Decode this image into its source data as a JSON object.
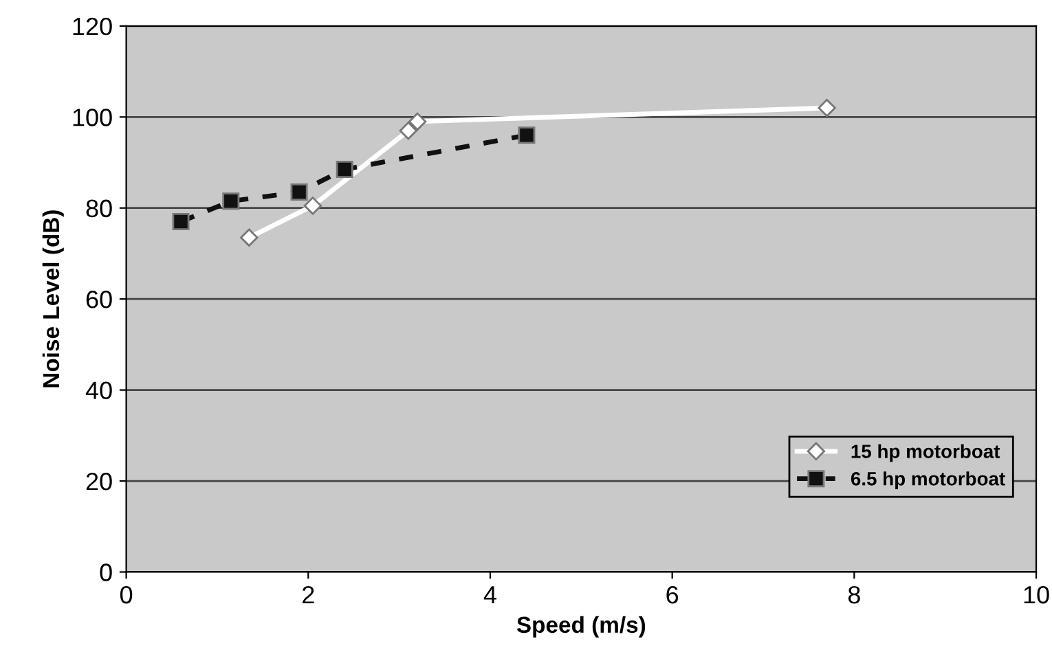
{
  "chart_data": {
    "type": "line",
    "xlabel": "Speed (m/s)",
    "ylabel": "Noise Level (dB)",
    "xlim": [
      0,
      10
    ],
    "xticks": [
      0,
      2,
      4,
      6,
      8,
      10
    ],
    "ylim": [
      0,
      120
    ],
    "yticks": [
      0,
      20,
      40,
      60,
      80,
      100,
      120
    ],
    "grid": "y",
    "legend": "bottom right",
    "series": [
      {
        "name": "15 hp motorboat",
        "color": "#ffffff",
        "marker": "diamond",
        "line_style": "solid",
        "x": [
          1.35,
          2.05,
          3.1,
          3.2,
          7.7
        ],
        "values": [
          73.5,
          80.5,
          97,
          99,
          102
        ]
      },
      {
        "name": "6.5 hp motorboat",
        "color": "#111111",
        "marker": "square",
        "line_style": "dashed",
        "x": [
          0.6,
          1.15,
          1.9,
          2.4,
          4.4
        ],
        "values": [
          77,
          81.5,
          83.5,
          88.5,
          96
        ]
      }
    ]
  }
}
